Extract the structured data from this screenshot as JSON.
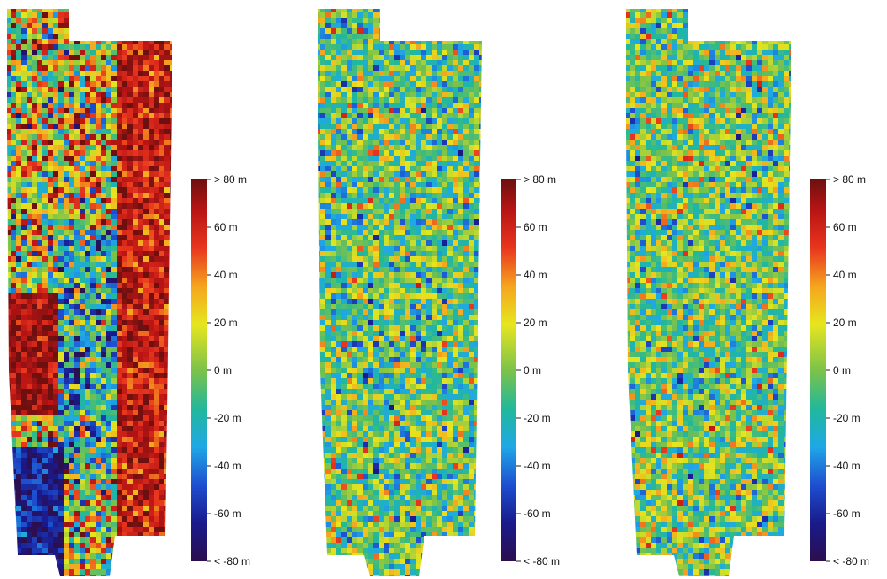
{
  "colorbar": {
    "colors": [
      "#2b0f4e",
      "#1a1a8c",
      "#1d4fd0",
      "#1fa8e6",
      "#22b89a",
      "#7cc24a",
      "#e6e61e",
      "#f5a51e",
      "#e8361e",
      "#b81414",
      "#6e1010"
    ],
    "range": [
      -80,
      80
    ],
    "tick_values": [
      80,
      60,
      40,
      20,
      0,
      -20,
      -40,
      -60,
      -80
    ],
    "tick_labels": [
      "> 80 m",
      "60 m",
      "40 m",
      "20 m",
      "0 m",
      "-20 m",
      "-40 m",
      "-60 m",
      "< -80 m"
    ]
  },
  "chart_data": [
    {
      "type": "heatmap",
      "panel": 1,
      "colorbar_ticks": [
        "> 80 m",
        "60 m",
        "40 m",
        "20 m",
        "0 m",
        "-20 m",
        "-40 m",
        "-60 m",
        "< -80 m"
      ],
      "value_range": [
        -80,
        80
      ],
      "regions": [
        {
          "area": "right strip",
          "approx_value": 65
        },
        {
          "area": "left middle block",
          "approx_value": 70
        },
        {
          "area": "bottom-left block",
          "approx_value": -65
        },
        {
          "area": "center band",
          "approx_value": -15
        },
        {
          "area": "top-left area",
          "approx_value": 20
        }
      ]
    },
    {
      "type": "heatmap",
      "panel": 2,
      "colorbar_ticks": [
        "> 80 m",
        "60 m",
        "40 m",
        "20 m",
        "0 m",
        "-20 m",
        "-40 m",
        "-60 m",
        "< -80 m"
      ],
      "value_range": [
        -80,
        80
      ],
      "regions": [
        {
          "area": "whole map",
          "approx_value": -5
        }
      ]
    },
    {
      "type": "heatmap",
      "panel": 3,
      "colorbar_ticks": [
        "> 80 m",
        "60 m",
        "40 m",
        "20 m",
        "0 m",
        "-20 m",
        "-40 m",
        "-60 m",
        "< -80 m"
      ],
      "value_range": [
        -80,
        80
      ],
      "regions": [
        {
          "area": "whole map",
          "approx_value": -3
        }
      ]
    }
  ]
}
